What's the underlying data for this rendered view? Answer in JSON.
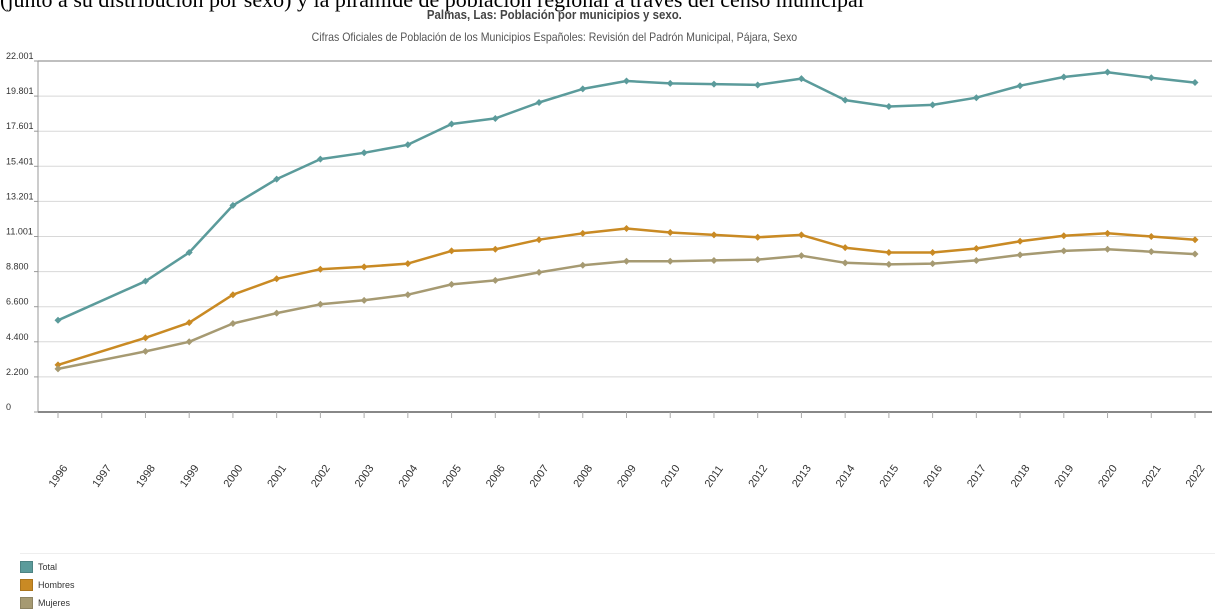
{
  "page": {
    "top_cut_text": "(junto a su distribución por sexo) y la pirámide de población regional a través del censo municipal"
  },
  "chart_data": {
    "type": "line",
    "title": "Palmas, Las: Población por municipios y sexo.",
    "subtitle": "Cifras Oficiales de Población de los Municipios Españoles: Revisión del Padrón Municipal, Pájara, Sexo",
    "xlabel": "",
    "ylabel": "",
    "categories": [
      "1996",
      "1997",
      "1998",
      "1999",
      "2000",
      "2001",
      "2002",
      "2003",
      "2004",
      "2005",
      "2006",
      "2007",
      "2008",
      "2009",
      "2010",
      "2011",
      "2012",
      "2013",
      "2014",
      "2015",
      "2016",
      "2017",
      "2018",
      "2019",
      "2020",
      "2021",
      "2022"
    ],
    "y_ticks": [
      0,
      2200,
      4400,
      6600,
      8800,
      11001,
      13201,
      15401,
      17601,
      19801,
      22001
    ],
    "y_tick_labels": [
      "0",
      "2.200",
      "4.400",
      "6.600",
      "8.800",
      "11.001",
      "13.201",
      "15.401",
      "17.601",
      "19.801",
      "22.001"
    ],
    "ylim": [
      0,
      22001
    ],
    "grid": true,
    "legend_position": "bottom-left",
    "series": [
      {
        "name": "Total",
        "color": "#5b9b9b",
        "values": [
          5750,
          null,
          8200,
          10000,
          12950,
          14600,
          15850,
          16250,
          16750,
          18050,
          18400,
          19400,
          20250,
          20750,
          20600,
          20550,
          20500,
          20900,
          19550,
          19150,
          19250,
          19700,
          20450,
          21000,
          21300,
          20950,
          20650
        ],
        "markers": [
          true,
          false,
          true,
          true,
          true,
          true,
          true,
          true,
          true,
          true,
          true,
          true,
          true,
          true,
          true,
          true,
          true,
          true,
          true,
          true,
          true,
          true,
          true,
          true,
          true,
          true,
          true
        ]
      },
      {
        "name": "Hombres",
        "color": "#c98a24",
        "values": [
          2950,
          null,
          4650,
          5600,
          7350,
          8350,
          8950,
          9100,
          9300,
          10100,
          10200,
          10800,
          11200,
          11500,
          11250,
          11100,
          10950,
          11100,
          10300,
          10000,
          10000,
          10250,
          10700,
          11050,
          11200,
          11000,
          10800
        ],
        "markers": [
          true,
          false,
          true,
          true,
          true,
          true,
          true,
          true,
          true,
          true,
          true,
          true,
          true,
          true,
          true,
          true,
          true,
          true,
          true,
          true,
          true,
          true,
          true,
          true,
          true,
          true,
          true
        ]
      },
      {
        "name": "Mujeres",
        "color": "#a69a72",
        "values": [
          2700,
          null,
          3800,
          4400,
          5550,
          6200,
          6750,
          7000,
          7350,
          8000,
          8250,
          8750,
          9200,
          9450,
          9450,
          9500,
          9550,
          9800,
          9350,
          9250,
          9300,
          9500,
          9850,
          10100,
          10200,
          10050,
          9900
        ],
        "markers": [
          true,
          false,
          true,
          true,
          true,
          true,
          true,
          true,
          true,
          true,
          true,
          true,
          true,
          true,
          true,
          true,
          true,
          true,
          true,
          true,
          true,
          true,
          true,
          true,
          true,
          true,
          true
        ]
      }
    ]
  }
}
